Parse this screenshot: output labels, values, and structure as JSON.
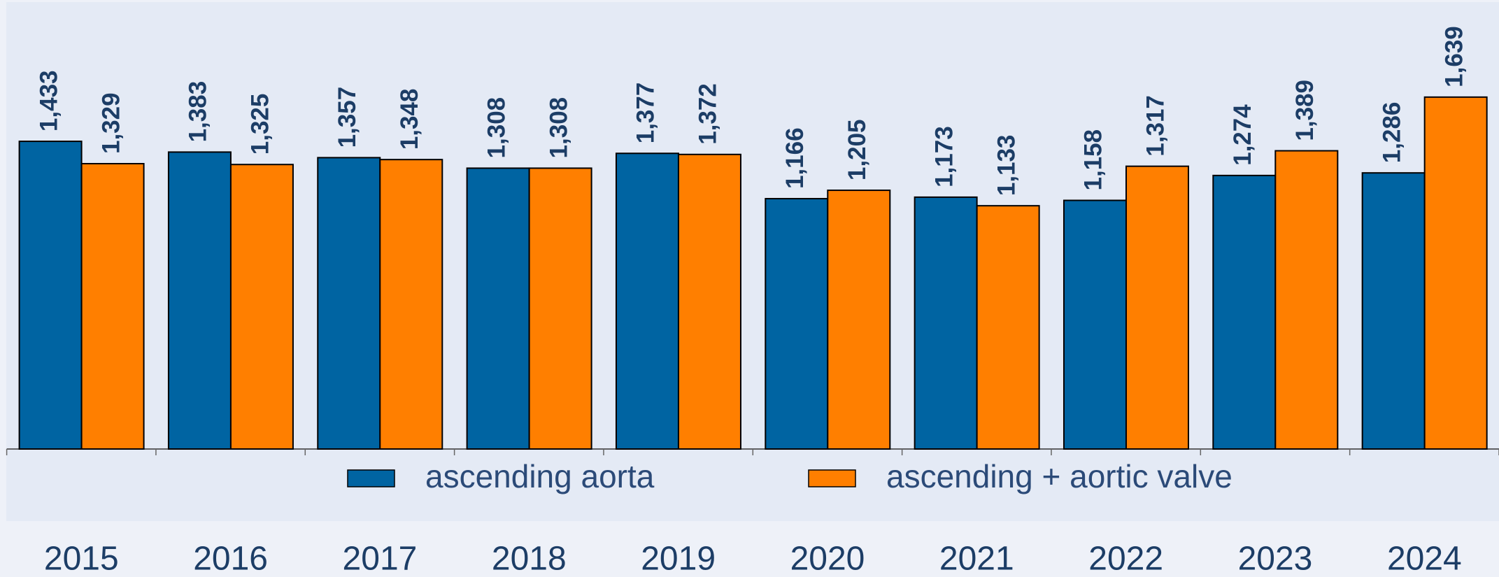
{
  "chart_data": {
    "type": "bar",
    "categories": [
      "2015",
      "2016",
      "2017",
      "2018",
      "2019",
      "2020",
      "2021",
      "2022",
      "2023",
      "2024"
    ],
    "series": [
      {
        "name": "ascending aorta",
        "color": "#0064a2",
        "values": [
          1433,
          1383,
          1357,
          1308,
          1377,
          1166,
          1173,
          1158,
          1274,
          1286
        ],
        "value_labels": [
          "1,433",
          "1,383",
          "1,357",
          "1,308",
          "1,377",
          "1,166",
          "1,173",
          "1,158",
          "1,274",
          "1,286"
        ]
      },
      {
        "name": "ascending + aortic valve",
        "color": "#ff7f00",
        "values": [
          1329,
          1325,
          1348,
          1308,
          1372,
          1205,
          1133,
          1317,
          1389,
          1639
        ],
        "value_labels": [
          "1,329",
          "1,325",
          "1,348",
          "1,308",
          "1,372",
          "1,205",
          "1,133",
          "1,317",
          "1,389",
          "1,639"
        ]
      }
    ]
  }
}
